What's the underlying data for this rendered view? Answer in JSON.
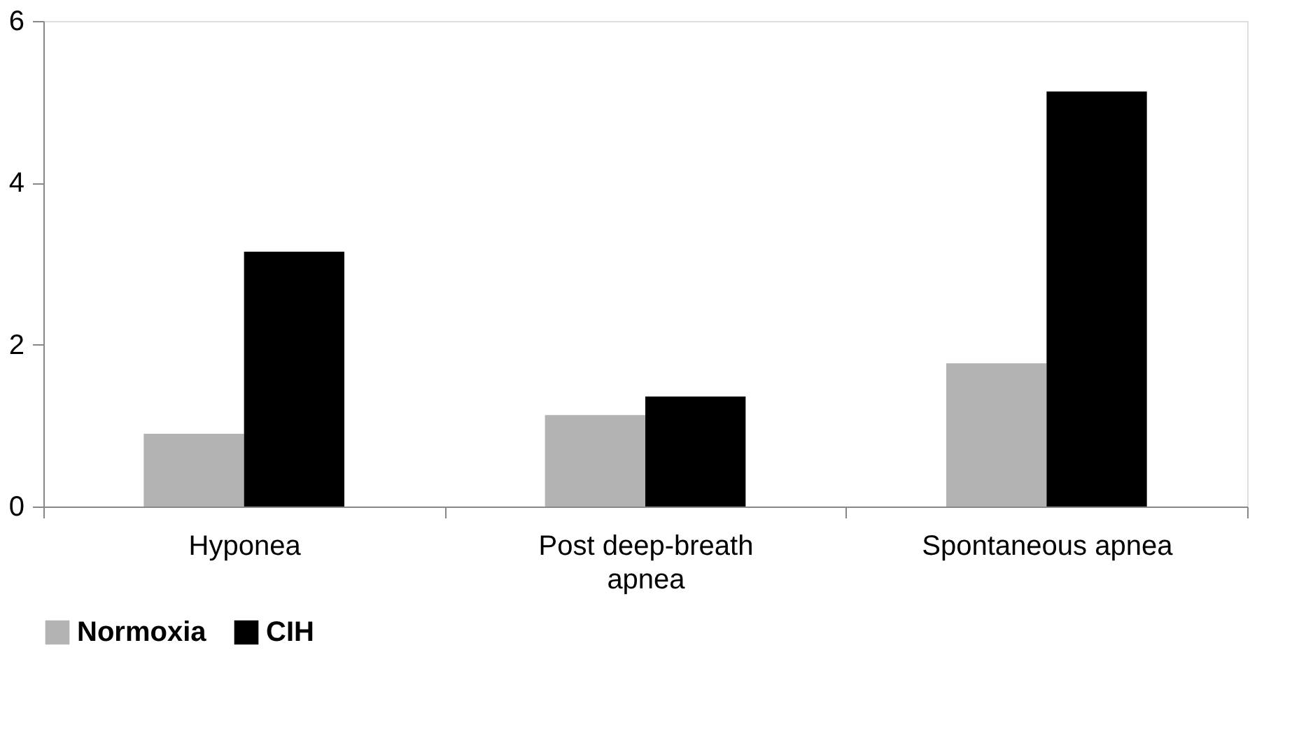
{
  "chart_data": {
    "type": "bar",
    "categories": [
      "Hyponea",
      "Post deep-breath apnea",
      "Spontaneous apnea"
    ],
    "series": [
      {
        "name": "Normoxia",
        "color": "#b3b3b3",
        "values": [
          0.9,
          1.13,
          1.77
        ]
      },
      {
        "name": "CIH",
        "color": "#000000",
        "values": [
          3.15,
          1.36,
          5.13
        ]
      }
    ],
    "ylim": [
      0,
      6
    ],
    "yticks": [
      0,
      2,
      4,
      6
    ],
    "grid": false,
    "legend": "bottom"
  }
}
